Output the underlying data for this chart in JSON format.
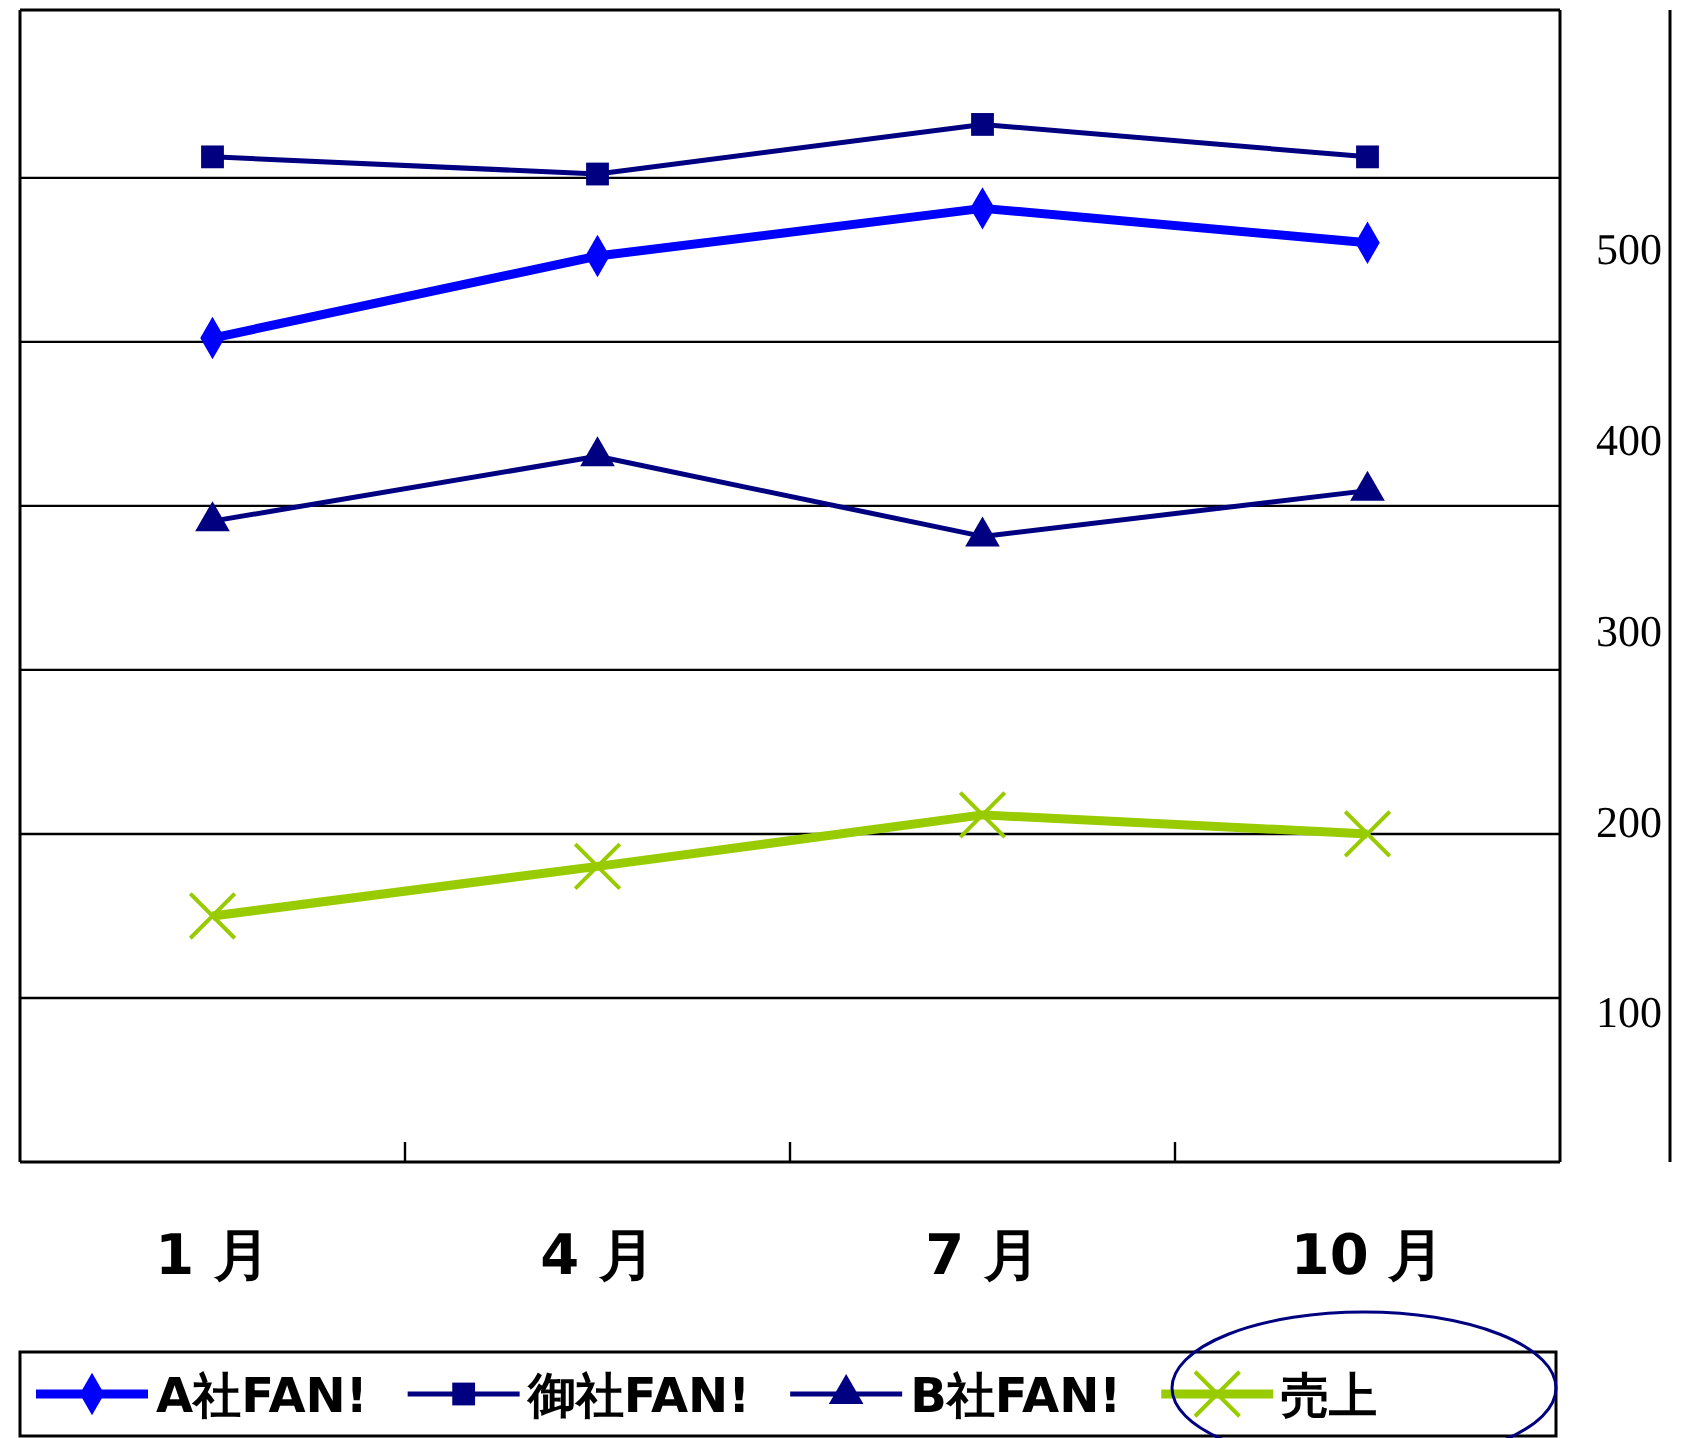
{
  "chart_data": {
    "type": "line",
    "categories": [
      "1 月",
      "4 月",
      "7 月",
      "10 月"
    ],
    "series": [
      {
        "name": "A社FAN!",
        "color": "#0000ff",
        "marker": "diamond",
        "values": [
          454,
          497,
          522,
          504
        ]
      },
      {
        "name": "御社FAN!",
        "color": "#000080",
        "marker": "square",
        "values": [
          549,
          540,
          566,
          549
        ]
      },
      {
        "name": "B社FAN!",
        "color": "#000080",
        "marker": "triangle",
        "values": [
          358,
          392,
          350,
          374
        ]
      },
      {
        "name": "売上",
        "color": "#99cc00",
        "marker": "cross",
        "values": [
          151,
          177,
          204,
          194
        ]
      }
    ],
    "ylim": [
      22,
      626
    ],
    "yticks": [
      100,
      200,
      300,
      400,
      500,
      {
        "value": 108,
        "label": null
      },
      {
        "value": 194,
        "label": null
      },
      {
        "value": 280,
        "label": null
      },
      {
        "value": 366,
        "label": null
      },
      {
        "value": 452,
        "label": null
      },
      {
        "value": 538,
        "label": null
      }
    ],
    "grid": "y",
    "legend": "bottom",
    "line_style": "solid"
  }
}
